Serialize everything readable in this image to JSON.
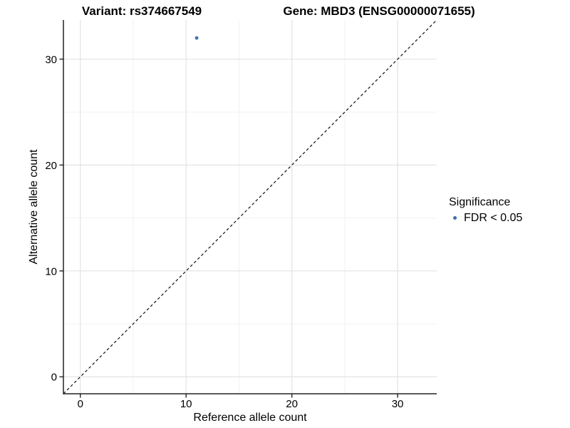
{
  "chart_data": {
    "type": "scatter",
    "title_left": "Variant: rs374667549",
    "title_right": "Gene: MBD3 (ENSG00000071655)",
    "xlabel": "Reference allele count",
    "ylabel": "Alternative allele count",
    "x_ticks": [
      0,
      10,
      20,
      30
    ],
    "y_ticks": [
      0,
      10,
      20,
      30
    ],
    "minor_ticks": [
      5,
      15,
      25
    ],
    "xlim": [
      -1.6,
      33.7
    ],
    "ylim": [
      -1.6,
      33.7
    ],
    "grid": "major-and-minor",
    "points": [
      {
        "x": 11,
        "y": 32,
        "series": "FDR < 0.05"
      }
    ],
    "identity_line": {
      "slope": 1,
      "intercept": 0,
      "style": "dashed",
      "color": "#111111"
    },
    "legend": {
      "position": "right",
      "title": "Significance",
      "entries": [
        {
          "label": "FDR < 0.05",
          "color": "#3c6fae"
        }
      ]
    },
    "colors": {
      "point": "#3c6fae",
      "grid_major": "#e3e3e3",
      "grid_minor": "#f1f1f1",
      "axis": "#222222",
      "text": "#000000"
    }
  }
}
